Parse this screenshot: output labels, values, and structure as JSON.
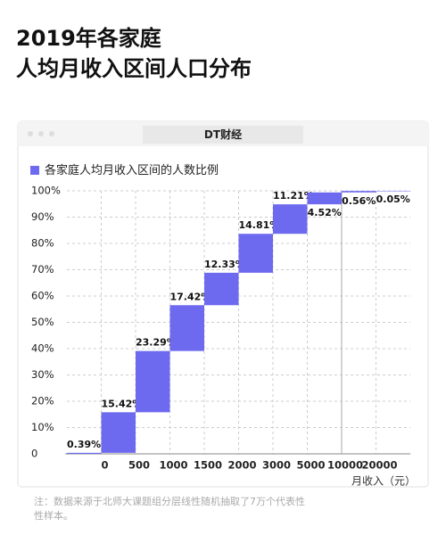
{
  "chart_data": {
    "type": "waterfall",
    "title_lines": [
      "2019年各家庭",
      "人均月收入区间人口分布"
    ],
    "brand": "DT财经",
    "legend": "各家庭人均月收入区间的人数比例",
    "boundaries": [
      "0",
      "500",
      "1000",
      "1500",
      "2000",
      "3000",
      "5000",
      "10000",
      "20000"
    ],
    "values": [
      0.39,
      15.42,
      23.29,
      17.42,
      12.33,
      14.81,
      11.21,
      4.52,
      0.56,
      0.05
    ],
    "value_labels": [
      "0.39%",
      "15.42%",
      "23.29%",
      "17.42%",
      "12.33%",
      "14.81%",
      "11.21%",
      "4.52%",
      "0.56%",
      "0.05%"
    ],
    "color": "#6e6af0",
    "ylim": [
      0,
      100
    ],
    "yticks": [
      0,
      {
        "value": 10,
        "label": "10%"
      },
      {
        "value": 20,
        "label": "20%"
      },
      {
        "value": 30,
        "label": "30%"
      },
      {
        "value": 40,
        "label": "40%"
      },
      {
        "value": 50,
        "label": "50%"
      },
      {
        "value": 60,
        "label": "60%"
      },
      {
        "value": 70,
        "label": "70%"
      },
      {
        "value": 80,
        "label": "80%"
      },
      {
        "value": 90,
        "label": "90%"
      },
      {
        "value": 100,
        "label": "100%"
      }
    ],
    "grid": true,
    "x_label": "月收入（元）",
    "note_lines": [
      "注：数据来源于北师大课题组分层线性随机抽取了7万个代表性",
      "性样本。"
    ]
  }
}
